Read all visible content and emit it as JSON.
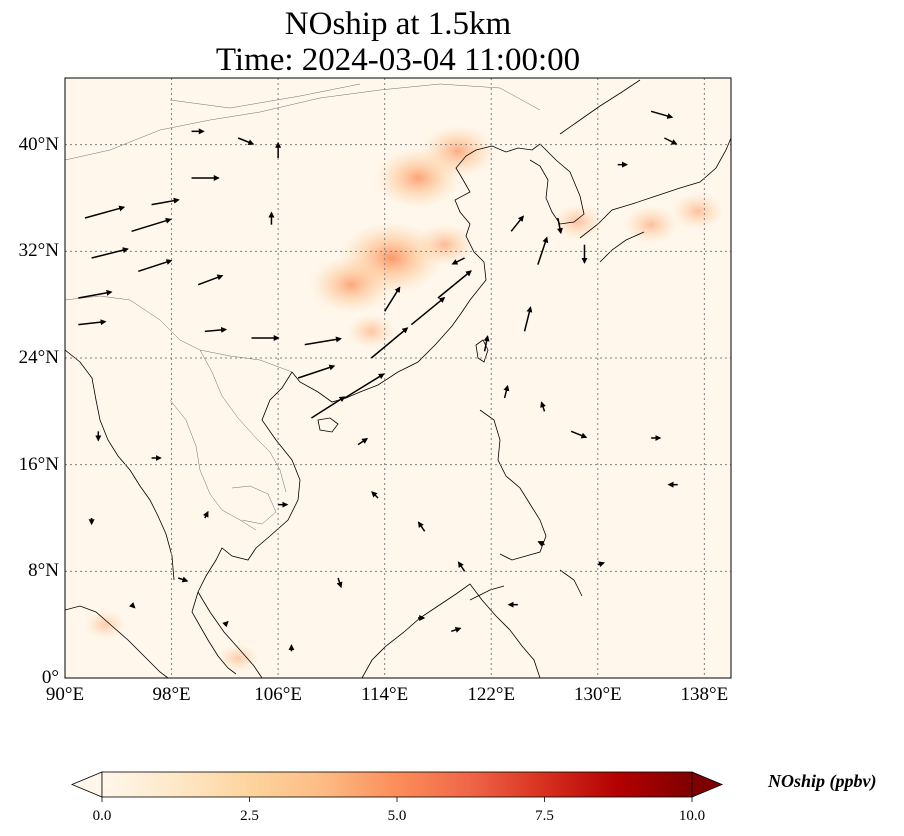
{
  "title": {
    "line1": "NOship at 1.5km",
    "line2": "Time: 2024-03-04 11:00:00"
  },
  "map": {
    "extent": {
      "lon_min": 90,
      "lon_max": 140,
      "lat_min": 0,
      "lat_max": 45
    },
    "lon_ticks": [
      {
        "value": 90,
        "label": "90°E"
      },
      {
        "value": 98,
        "label": "98°E"
      },
      {
        "value": 106,
        "label": "106°E"
      },
      {
        "value": 114,
        "label": "114°E"
      },
      {
        "value": 122,
        "label": "122°E"
      },
      {
        "value": 130,
        "label": "130°E"
      },
      {
        "value": 138,
        "label": "138°E"
      }
    ],
    "lat_ticks": [
      {
        "value": 0,
        "label": "0°"
      },
      {
        "value": 8,
        "label": "8°N"
      },
      {
        "value": 16,
        "label": "16°N"
      },
      {
        "value": 24,
        "label": "24°N"
      },
      {
        "value": 32,
        "label": "32°N"
      },
      {
        "value": 40,
        "label": "40°N"
      }
    ],
    "gridlines": true,
    "background_color": "#fff7ec",
    "coastline_color": "#000000",
    "concentration_hotspots": [
      {
        "lon": 116.5,
        "lat": 37.5,
        "value": 3.2
      },
      {
        "lon": 119.5,
        "lat": 39.5,
        "value": 2.6
      },
      {
        "lon": 114.5,
        "lat": 31.5,
        "value": 4.2
      },
      {
        "lon": 111.5,
        "lat": 29.5,
        "value": 3.0
      },
      {
        "lon": 118.5,
        "lat": 32.5,
        "value": 1.8
      },
      {
        "lon": 134.0,
        "lat": 34.0,
        "value": 1.5
      },
      {
        "lon": 128.5,
        "lat": 34.2,
        "value": 1.3
      },
      {
        "lon": 137.5,
        "lat": 35.0,
        "value": 1.4
      },
      {
        "lon": 113.0,
        "lat": 26.0,
        "value": 1.2
      },
      {
        "lon": 93.0,
        "lat": 4.0,
        "value": 0.8
      },
      {
        "lon": 103.0,
        "lat": 1.5,
        "value": 0.8
      }
    ],
    "wind_vectors": [
      {
        "lon": 91.5,
        "lat": 34.5,
        "u": 6.5,
        "v": 1.8
      },
      {
        "lon": 92.0,
        "lat": 31.5,
        "u": 6.0,
        "v": 1.5
      },
      {
        "lon": 91.0,
        "lat": 28.5,
        "u": 5.5,
        "v": 1.0
      },
      {
        "lon": 91.0,
        "lat": 26.5,
        "u": 4.5,
        "v": 0.5
      },
      {
        "lon": 95.0,
        "lat": 33.5,
        "u": 6.5,
        "v": 2.0
      },
      {
        "lon": 95.5,
        "lat": 30.5,
        "u": 5.5,
        "v": 1.8
      },
      {
        "lon": 96.5,
        "lat": 35.5,
        "u": 4.5,
        "v": 0.8
      },
      {
        "lon": 99.5,
        "lat": 37.5,
        "u": 4.5,
        "v": 0.0
      },
      {
        "lon": 100.0,
        "lat": 29.5,
        "u": 4.0,
        "v": 1.5
      },
      {
        "lon": 100.5,
        "lat": 26.0,
        "u": 3.5,
        "v": 0.3
      },
      {
        "lon": 104.0,
        "lat": 25.5,
        "u": 4.5,
        "v": 0.0
      },
      {
        "lon": 108.0,
        "lat": 25.0,
        "u": 6.0,
        "v": 1.0
      },
      {
        "lon": 107.5,
        "lat": 22.5,
        "u": 6.0,
        "v": 2.0
      },
      {
        "lon": 108.5,
        "lat": 19.5,
        "u": 5.5,
        "v": 3.5
      },
      {
        "lon": 111.0,
        "lat": 21.0,
        "u": 6.5,
        "v": 4.0
      },
      {
        "lon": 113.0,
        "lat": 24.0,
        "u": 6.0,
        "v": 5.0
      },
      {
        "lon": 116.0,
        "lat": 26.5,
        "u": 5.5,
        "v": 4.5
      },
      {
        "lon": 118.0,
        "lat": 28.5,
        "u": 5.5,
        "v": 4.5
      },
      {
        "lon": 114.0,
        "lat": 27.5,
        "u": 2.5,
        "v": 4.0
      },
      {
        "lon": 120.0,
        "lat": 31.5,
        "u": -2.0,
        "v": -1.0
      },
      {
        "lon": 123.5,
        "lat": 33.5,
        "u": 2.0,
        "v": 2.5
      },
      {
        "lon": 125.5,
        "lat": 31.0,
        "u": 1.5,
        "v": 4.5
      },
      {
        "lon": 127.0,
        "lat": 34.5,
        "u": 0.5,
        "v": -2.5
      },
      {
        "lon": 129.0,
        "lat": 32.5,
        "u": 0.0,
        "v": -3.0
      },
      {
        "lon": 124.5,
        "lat": 26.0,
        "u": 1.0,
        "v": 4.0
      },
      {
        "lon": 121.5,
        "lat": 24.5,
        "u": 0.5,
        "v": 2.5
      },
      {
        "lon": 123.0,
        "lat": 21.0,
        "u": 0.5,
        "v": 2.0
      },
      {
        "lon": 126.0,
        "lat": 20.0,
        "u": -0.5,
        "v": 1.5
      },
      {
        "lon": 128.0,
        "lat": 18.5,
        "u": 2.5,
        "v": -1.0
      },
      {
        "lon": 134.0,
        "lat": 18.0,
        "u": 1.5,
        "v": 0.0
      },
      {
        "lon": 136.0,
        "lat": 14.5,
        "u": -1.5,
        "v": 0.0
      },
      {
        "lon": 134.0,
        "lat": 42.5,
        "u": 3.5,
        "v": -1.0
      },
      {
        "lon": 135.0,
        "lat": 40.5,
        "u": 2.0,
        "v": -1.0
      },
      {
        "lon": 131.5,
        "lat": 38.5,
        "u": 1.5,
        "v": 0.0
      },
      {
        "lon": 103.0,
        "lat": 40.5,
        "u": 2.5,
        "v": -1.0
      },
      {
        "lon": 99.5,
        "lat": 41.0,
        "u": 2.0,
        "v": 0.0
      },
      {
        "lon": 106.0,
        "lat": 39.0,
        "u": 0.0,
        "v": 2.5
      },
      {
        "lon": 105.5,
        "lat": 34.0,
        "u": 0.0,
        "v": 2.0
      },
      {
        "lon": 112.0,
        "lat": 17.5,
        "u": 1.5,
        "v": 1.0
      },
      {
        "lon": 113.5,
        "lat": 13.5,
        "u": -1.0,
        "v": 1.0
      },
      {
        "lon": 117.0,
        "lat": 11.0,
        "u": -1.0,
        "v": 1.5
      },
      {
        "lon": 120.0,
        "lat": 8.0,
        "u": -1.0,
        "v": 1.5
      },
      {
        "lon": 116.5,
        "lat": 4.5,
        "u": 1.0,
        "v": 0.0
      },
      {
        "lon": 119.0,
        "lat": 3.5,
        "u": 1.5,
        "v": 0.5
      },
      {
        "lon": 110.5,
        "lat": 7.5,
        "u": 0.5,
        "v": -1.5
      },
      {
        "lon": 106.0,
        "lat": 13.0,
        "u": 1.5,
        "v": 0.0
      },
      {
        "lon": 100.5,
        "lat": 12.0,
        "u": 0.5,
        "v": 1.0
      },
      {
        "lon": 96.5,
        "lat": 16.5,
        "u": 1.5,
        "v": 0.0
      },
      {
        "lon": 92.5,
        "lat": 18.5,
        "u": 0.0,
        "v": -1.5
      },
      {
        "lon": 92.0,
        "lat": 12.0,
        "u": 0.0,
        "v": -1.0
      },
      {
        "lon": 98.5,
        "lat": 7.5,
        "u": 1.5,
        "v": -0.5
      },
      {
        "lon": 95.0,
        "lat": 5.5,
        "u": 0.5,
        "v": -0.5
      },
      {
        "lon": 102.0,
        "lat": 4.0,
        "u": 0.5,
        "v": 0.5
      },
      {
        "lon": 107.0,
        "lat": 2.0,
        "u": 0.0,
        "v": 1.0
      },
      {
        "lon": 130.0,
        "lat": 8.5,
        "u": 1.0,
        "v": 0.3
      },
      {
        "lon": 126.0,
        "lat": 10.0,
        "u": -1.0,
        "v": 0.5
      },
      {
        "lon": 124.0,
        "lat": 5.5,
        "u": -1.5,
        "v": 0.0
      }
    ]
  },
  "colorbar": {
    "label": "NOship (ppbv)",
    "min": 0.0,
    "max": 10.0,
    "colormap": "OrRd",
    "extend": "both",
    "ticks": [
      "0.0",
      "2.5",
      "5.0",
      "7.5",
      "10.0"
    ],
    "colors": {
      "c0": "#fff7ec",
      "c1": "#fee8c8",
      "c2": "#fdd49e",
      "c3": "#fdbb84",
      "c4": "#fc8d59",
      "c5": "#ef6548",
      "c6": "#d7301f",
      "c7": "#b30000",
      "c8": "#7f0000"
    }
  }
}
